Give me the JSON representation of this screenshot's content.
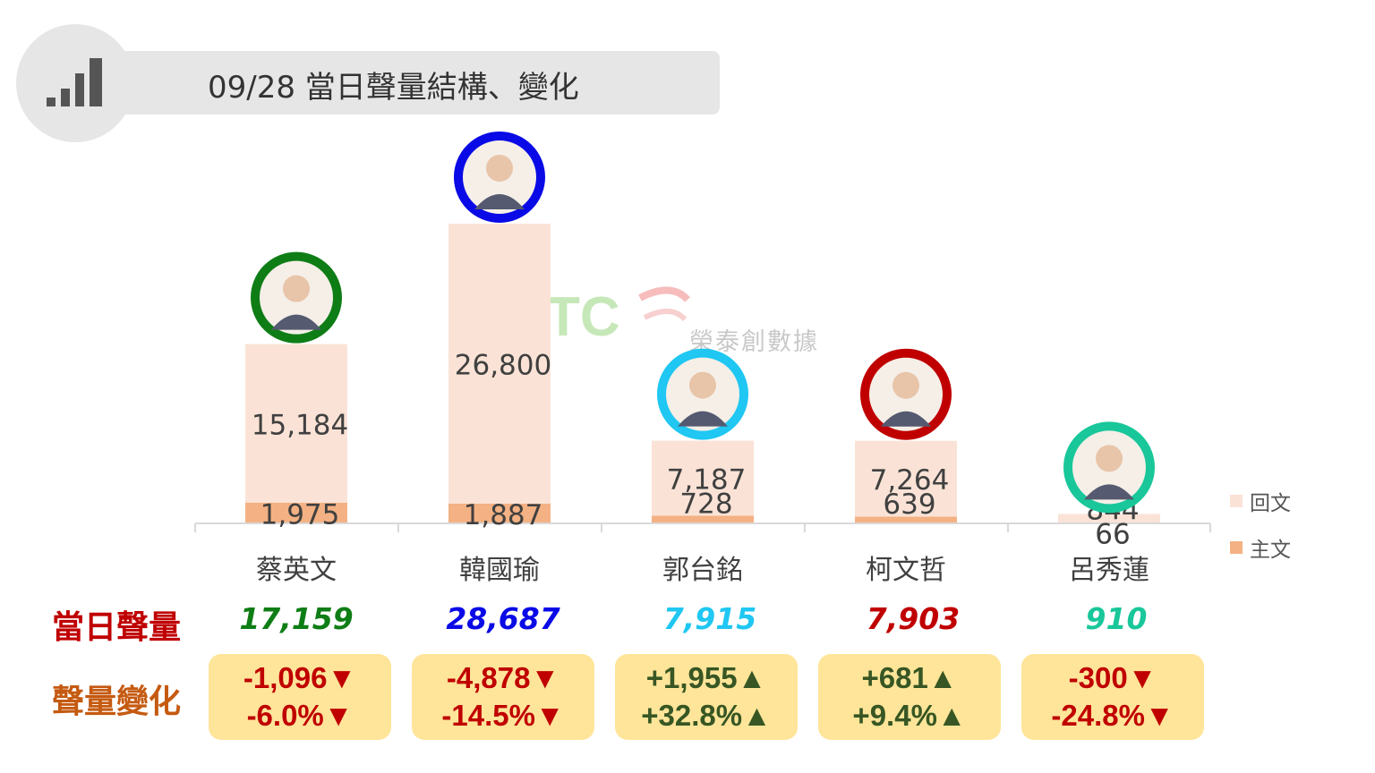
{
  "header": {
    "title": "09/28 當日聲量結構、變化",
    "icon": "bar-chart-icon"
  },
  "watermark": {
    "text": "榮泰創數據",
    "logo_letters": "TC"
  },
  "labels": {
    "total_row": "當日聲量",
    "change_row": "聲量變化"
  },
  "colors": {
    "reply_bar": "#fae3d6",
    "main_bar": "#f4b183",
    "label_red": "#c00000",
    "label_orange": "#c55a11",
    "change_up": "#375623",
    "change_down": "#c00000",
    "change_box": "#ffe599"
  },
  "chart_data": {
    "type": "bar",
    "stacked": true,
    "categories": [
      "蔡英文",
      "韓國瑜",
      "郭台銘",
      "柯文哲",
      "呂秀蓮"
    ],
    "series": [
      {
        "name": "主文",
        "values": [
          1975,
          1887,
          728,
          639,
          66
        ]
      },
      {
        "name": "回文",
        "values": [
          15184,
          26800,
          7187,
          7264,
          844
        ]
      }
    ],
    "value_labels": {
      "主文": [
        "1,975",
        "1,887",
        "728",
        "639",
        "66"
      ],
      "回文": [
        "15,184",
        "26,800",
        "7,187",
        "7,264",
        "844"
      ]
    },
    "legend_position": "right",
    "grid": false,
    "totals": [
      "17,159",
      "28,687",
      "7,915",
      "7,903",
      "910"
    ],
    "ring_colors": [
      "#0f7d16",
      "#0a0ae6",
      "#1fc7f2",
      "#c00000",
      "#19c79a"
    ],
    "total_colors": [
      "#0f7d16",
      "#0a0ae6",
      "#1fc7f2",
      "#c00000",
      "#19c79a"
    ],
    "changes": [
      {
        "count": "-1,096▼",
        "percent": "-6.0%▼",
        "direction": "down"
      },
      {
        "count": "-4,878▼",
        "percent": "-14.5%▼",
        "direction": "down"
      },
      {
        "count": "+1,955▲",
        "percent": "+32.8%▲",
        "direction": "up"
      },
      {
        "count": "+681▲",
        "percent": "+9.4%▲",
        "direction": "up"
      },
      {
        "count": "-300▼",
        "percent": "-24.8%▼",
        "direction": "down"
      }
    ]
  }
}
